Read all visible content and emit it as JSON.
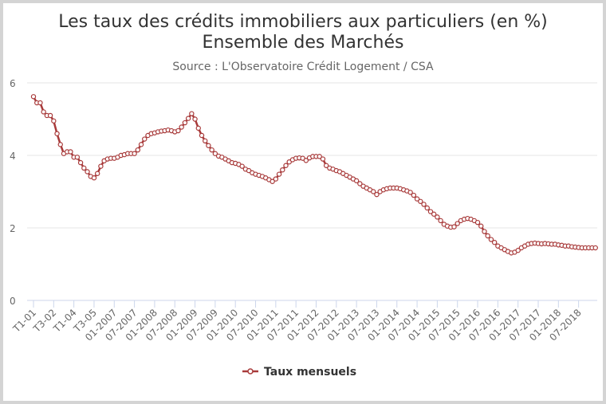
{
  "chart_data": {
    "type": "line",
    "title": "Les taux des crédits immobiliers aux particuliers (en %)",
    "title_line2": "Ensemble des Marchés",
    "subtitle": "Source : L'Observatoire Crédit Logement / CSA",
    "xlabel": "",
    "ylabel": "",
    "ylim": [
      0,
      6
    ],
    "y_ticks": [
      "0",
      "2",
      "4",
      "6"
    ],
    "grid": true,
    "legend_position": "bottom",
    "x_tick_labels": [
      "T1-01",
      "T3-02",
      "T1-04",
      "T3-05",
      "01-2007",
      "07-2007",
      "01-2008",
      "07-2008",
      "01-2009",
      "07-2009",
      "01-2010",
      "07-2010",
      "01-2011",
      "07-2011",
      "01-2012",
      "07-2012",
      "01-2013",
      "07-2013",
      "01-2014",
      "07-2014",
      "01-2015",
      "07-2015",
      "01-2016",
      "07-2016",
      "01-2017",
      "07-2017",
      "01-2018",
      "07-2018"
    ],
    "x_period_note": "Quarterly values T1-01 to T4-06, then monthly values 01-2007 to 12-2018",
    "series": [
      {
        "name": "Taux mensuels",
        "color": "#a83a3a",
        "values": [
          5.62,
          5.45,
          5.45,
          5.2,
          5.1,
          5.1,
          4.95,
          4.6,
          4.3,
          4.05,
          4.1,
          4.1,
          3.95,
          3.95,
          3.8,
          3.65,
          3.55,
          3.42,
          3.38,
          3.5,
          3.7,
          3.85,
          3.9,
          3.92,
          3.92,
          3.95,
          4.0,
          4.02,
          4.05,
          4.05,
          4.05,
          4.15,
          4.3,
          4.45,
          4.55,
          4.6,
          4.62,
          4.65,
          4.67,
          4.68,
          4.7,
          4.68,
          4.65,
          4.68,
          4.78,
          4.9,
          5.02,
          5.15,
          5.0,
          4.75,
          4.55,
          4.4,
          4.27,
          4.15,
          4.05,
          3.98,
          3.95,
          3.9,
          3.85,
          3.8,
          3.78,
          3.75,
          3.7,
          3.62,
          3.58,
          3.52,
          3.48,
          3.45,
          3.42,
          3.38,
          3.33,
          3.28,
          3.35,
          3.48,
          3.6,
          3.72,
          3.82,
          3.88,
          3.92,
          3.93,
          3.92,
          3.86,
          3.93,
          3.97,
          3.97,
          3.97,
          3.9,
          3.72,
          3.65,
          3.62,
          3.58,
          3.55,
          3.5,
          3.45,
          3.4,
          3.35,
          3.3,
          3.22,
          3.15,
          3.1,
          3.05,
          3.0,
          2.92,
          3.0,
          3.05,
          3.08,
          3.1,
          3.1,
          3.1,
          3.08,
          3.05,
          3.02,
          2.98,
          2.9,
          2.8,
          2.73,
          2.65,
          2.55,
          2.45,
          2.38,
          2.3,
          2.2,
          2.1,
          2.05,
          2.02,
          2.03,
          2.12,
          2.2,
          2.24,
          2.26,
          2.24,
          2.2,
          2.15,
          2.05,
          1.9,
          1.78,
          1.68,
          1.6,
          1.5,
          1.45,
          1.4,
          1.35,
          1.31,
          1.33,
          1.38,
          1.45,
          1.5,
          1.55,
          1.57,
          1.58,
          1.57,
          1.56,
          1.57,
          1.56,
          1.55,
          1.55,
          1.53,
          1.52,
          1.5,
          1.5,
          1.48,
          1.47,
          1.46,
          1.45,
          1.45,
          1.45,
          1.45,
          1.45
        ]
      }
    ]
  }
}
